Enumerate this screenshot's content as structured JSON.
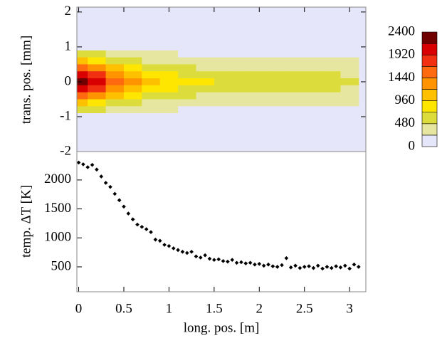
{
  "chart_data": [
    {
      "type": "contour",
      "ylabel": "trans. pos. [mm]",
      "x": [
        0,
        0.2,
        0.4,
        0.6,
        0.8,
        1.0,
        1.2,
        1.4,
        1.6,
        1.8,
        2.0,
        2.2,
        2.4,
        2.6,
        2.8,
        3.0
      ],
      "y": [
        1.0,
        0.8,
        0.6,
        0.4,
        0.2,
        0,
        -0.2,
        -0.4,
        -0.6,
        -0.8,
        -1.0
      ],
      "z": [
        [
          230,
          200,
          150,
          120,
          100,
          85,
          78,
          72,
          68,
          65,
          62,
          60,
          59,
          58,
          57,
          56
        ],
        [
          690,
          600,
          450,
          360,
          300,
          255,
          234,
          216,
          204,
          195,
          186,
          180,
          177,
          174,
          171,
          168
        ],
        [
          1035,
          900,
          675,
          540,
          450,
          383,
          351,
          324,
          306,
          293,
          279,
          270,
          266,
          261,
          257,
          252
        ],
        [
          1495,
          1300,
          975,
          780,
          650,
          553,
          507,
          468,
          442,
          423,
          403,
          390,
          384,
          377,
          371,
          364
        ],
        [
          1955,
          1700,
          1275,
          1020,
          850,
          723,
          663,
          612,
          578,
          553,
          527,
          510,
          502,
          493,
          485,
          476
        ],
        [
          2300,
          2000,
          1500,
          1200,
          1000,
          850,
          780,
          720,
          680,
          650,
          620,
          600,
          590,
          580,
          570,
          560
        ],
        [
          1955,
          1700,
          1275,
          1020,
          850,
          723,
          663,
          612,
          578,
          553,
          527,
          510,
          502,
          493,
          485,
          476
        ],
        [
          1495,
          1300,
          975,
          780,
          650,
          553,
          507,
          468,
          442,
          423,
          403,
          390,
          384,
          377,
          371,
          364
        ],
        [
          1035,
          900,
          675,
          540,
          450,
          383,
          351,
          324,
          306,
          293,
          279,
          270,
          266,
          261,
          257,
          252
        ],
        [
          690,
          600,
          450,
          360,
          300,
          255,
          234,
          216,
          204,
          195,
          186,
          180,
          177,
          174,
          171,
          168
        ],
        [
          230,
          200,
          150,
          120,
          100,
          85,
          78,
          72,
          68,
          65,
          62,
          60,
          59,
          58,
          57,
          56
        ]
      ],
      "xlim": [
        -0.02,
        3.18
      ],
      "ylim": [
        -2,
        2.14
      ],
      "yticks": [
        -2,
        -1,
        0,
        1,
        2
      ],
      "levels": [
        0,
        240,
        480,
        720,
        960,
        1200,
        1440,
        1680,
        1920,
        2160,
        2400
      ],
      "colors": [
        "#e6e6fa",
        "#e6e6a0",
        "#dcdc3c",
        "#ffe600",
        "#ffc000",
        "#ff9400",
        "#ff6a10",
        "#f03010",
        "#d80000",
        "#700000"
      ],
      "colorbar_ticks": [
        0,
        480,
        960,
        1440,
        1920,
        2400
      ]
    },
    {
      "type": "scatter",
      "xlabel": "long. pos. [m]",
      "ylabel": "temp. ΔT [K]",
      "color": "#000000",
      "x": [
        0,
        0.05,
        0.1,
        0.15,
        0.2,
        0.25,
        0.3,
        0.35,
        0.4,
        0.45,
        0.5,
        0.55,
        0.6,
        0.65,
        0.7,
        0.75,
        0.8,
        0.85,
        0.9,
        0.95,
        1.0,
        1.05,
        1.1,
        1.15,
        1.2,
        1.25,
        1.3,
        1.35,
        1.4,
        1.45,
        1.5,
        1.55,
        1.6,
        1.65,
        1.7,
        1.75,
        1.8,
        1.85,
        1.9,
        1.95,
        2.0,
        2.05,
        2.1,
        2.15,
        2.2,
        2.25,
        2.3,
        2.35,
        2.4,
        2.45,
        2.5,
        2.55,
        2.6,
        2.65,
        2.7,
        2.75,
        2.8,
        2.85,
        2.9,
        2.95,
        3.0,
        3.05,
        3.1
      ],
      "values": [
        2300,
        2270,
        2220,
        2260,
        2180,
        2060,
        1950,
        1880,
        1760,
        1650,
        1540,
        1420,
        1320,
        1230,
        1190,
        1150,
        1100,
        970,
        950,
        880,
        860,
        820,
        790,
        760,
        740,
        760,
        680,
        660,
        700,
        640,
        620,
        630,
        600,
        590,
        620,
        570,
        580,
        560,
        570,
        540,
        550,
        520,
        540,
        510,
        500,
        530,
        650,
        490,
        520,
        480,
        500,
        510,
        480,
        520,
        470,
        500,
        480,
        510,
        490,
        520,
        470,
        540,
        500
      ],
      "xlim": [
        -0.02,
        3.18
      ],
      "ylim": [
        70,
        2490
      ],
      "xticks": [
        0,
        0.5,
        1,
        1.5,
        2,
        2.5,
        3
      ],
      "yticks": [
        500,
        1000,
        1500,
        2000
      ]
    }
  ]
}
